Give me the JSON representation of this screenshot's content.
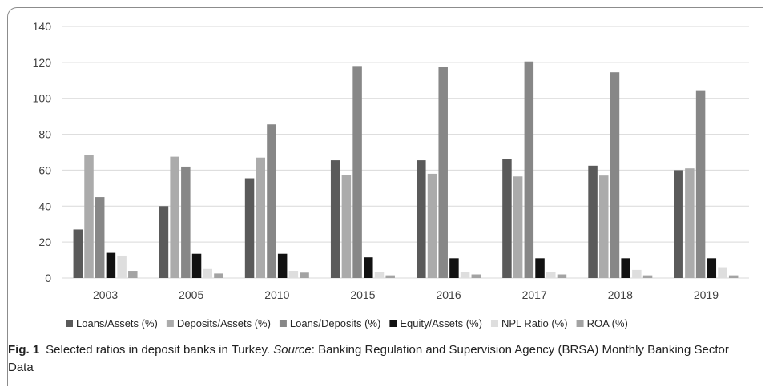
{
  "caption": {
    "figure_label": "Fig. 1",
    "text": "Selected ratios in deposit banks in Turkey.",
    "source_label": "Source",
    "source_text": ": Banking Regulation and Supervision Agency (BRSA) Monthly Banking Sector Data"
  },
  "colors": {
    "Loans/Assets (%)": "#5a5a5a",
    "Deposits/Assets (%)": "#ababab",
    "Loans/Deposits (%)": "#878787",
    "Equity/Assets (%)": "#111111",
    "NPL Ratio (%)": "#dedede",
    "ROA (%)": "#a3a3a3",
    "gridline": "#d9d9d9",
    "frame": "#8c8c8c"
  },
  "chart_data": {
    "type": "bar",
    "categories": [
      "2003",
      "2005",
      "2010",
      "2015",
      "2016",
      "2017",
      "2018",
      "2019"
    ],
    "ylim": [
      0,
      140
    ],
    "yticks": [
      "0",
      "20",
      "40",
      "60",
      "80",
      "100",
      "120",
      "140"
    ],
    "grid": true,
    "legend_position": "bottom",
    "series": [
      {
        "name": "Loans/Assets (%)",
        "values": [
          27,
          40,
          55.5,
          65.5,
          65.5,
          66,
          62.5,
          60
        ]
      },
      {
        "name": "Deposits/Assets (%)",
        "values": [
          68.5,
          67.5,
          67,
          57.5,
          58,
          56.5,
          57,
          61
        ]
      },
      {
        "name": "Loans/Deposits (%)",
        "values": [
          45,
          62,
          85.5,
          118,
          117.5,
          120.5,
          114.5,
          104.5
        ]
      },
      {
        "name": "Equity/Assets (%)",
        "values": [
          14,
          13.5,
          13.5,
          11.5,
          11,
          11,
          11,
          11
        ]
      },
      {
        "name": "NPL Ratio (%)",
        "values": [
          12.5,
          5,
          4,
          3.5,
          3.5,
          3.5,
          4.5,
          6
        ]
      },
      {
        "name": "ROA (%)",
        "values": [
          4,
          2.5,
          3,
          1.5,
          2,
          2,
          1.5,
          1.5
        ]
      }
    ]
  }
}
